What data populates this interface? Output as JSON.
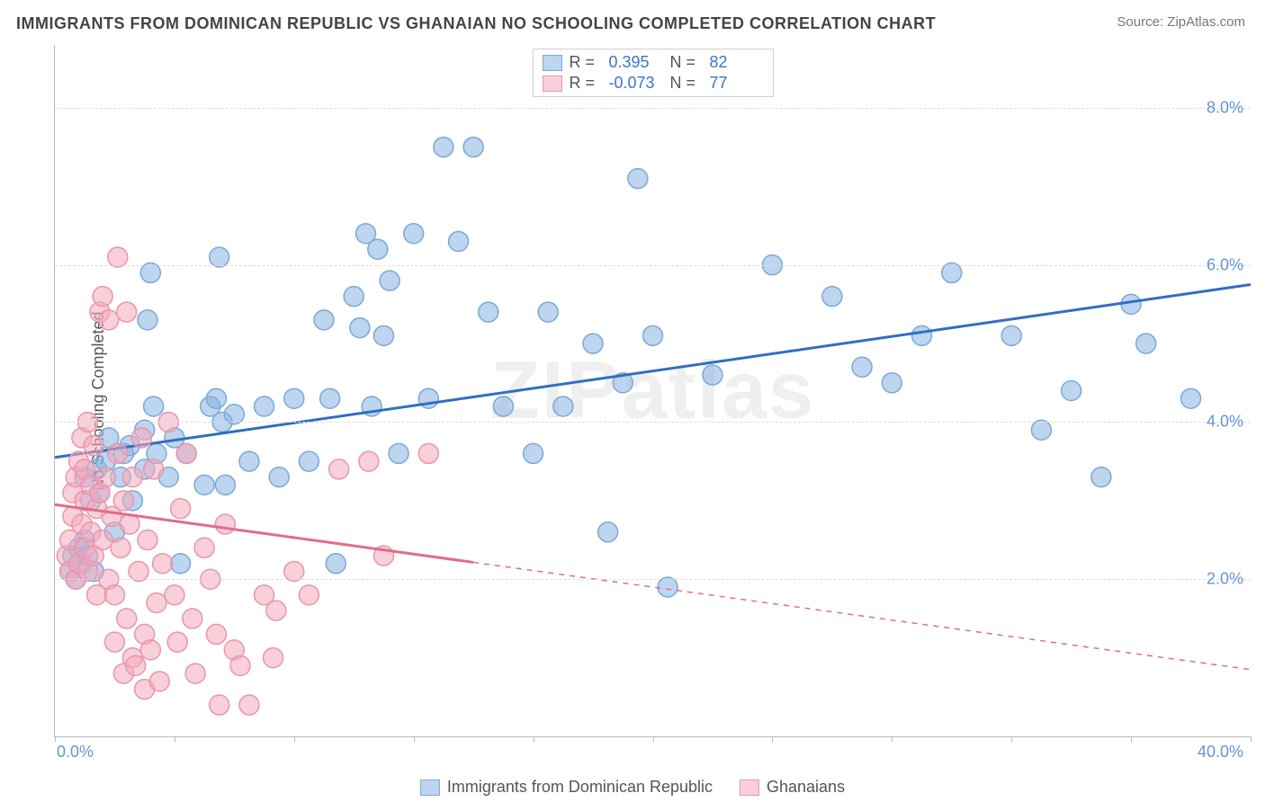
{
  "title": "IMMIGRANTS FROM DOMINICAN REPUBLIC VS GHANAIAN NO SCHOOLING COMPLETED CORRELATION CHART",
  "source_label": "Source:",
  "source_name": "ZipAtlas.com",
  "ylabel": "No Schooling Completed",
  "watermark": "ZIPatlas",
  "chart": {
    "type": "scatter",
    "background_color": "#ffffff",
    "grid_color": "#dddddd",
    "axis_color": "#bbbbbb",
    "label_color": "#6394d8",
    "title_color": "#444444",
    "title_fontsize": 18,
    "label_fontsize": 18,
    "marker_radius": 11,
    "marker_opacity": 0.55,
    "line_width": 3,
    "xlim": [
      0,
      40
    ],
    "ylim": [
      0,
      8.8
    ],
    "x_min_label": "0.0%",
    "x_max_label": "40.0%",
    "xtick_positions": [
      0,
      4,
      8,
      12,
      16,
      20,
      24,
      28,
      32,
      36,
      40
    ],
    "yticks": [
      2.0,
      4.0,
      6.0,
      8.0
    ],
    "ytick_labels": [
      "2.0%",
      "4.0%",
      "6.0%",
      "8.0%"
    ],
    "series": [
      {
        "name": "Immigrants from Dominican Republic",
        "color_fill": "rgba(137,179,226,0.55)",
        "color_stroke": "#7aa9d8",
        "line_color": "#2f6fc1",
        "r_label": "R =",
        "r_value": "0.395",
        "n_label": "N =",
        "n_value": "82",
        "trend": {
          "x1": 0,
          "y1": 3.55,
          "x2": 40,
          "y2": 5.75,
          "solid_to_x": 40
        },
        "points": [
          [
            0.5,
            2.1
          ],
          [
            0.6,
            2.3
          ],
          [
            0.7,
            2.0
          ],
          [
            0.8,
            2.4
          ],
          [
            0.9,
            2.2
          ],
          [
            1.0,
            2.5
          ],
          [
            1.1,
            2.3
          ],
          [
            1.3,
            2.1
          ],
          [
            1.0,
            3.3
          ],
          [
            1.2,
            3.0
          ],
          [
            1.4,
            3.4
          ],
          [
            1.5,
            3.1
          ],
          [
            1.7,
            3.5
          ],
          [
            1.8,
            3.8
          ],
          [
            2.0,
            2.6
          ],
          [
            2.2,
            3.3
          ],
          [
            2.3,
            3.6
          ],
          [
            2.5,
            3.7
          ],
          [
            2.6,
            3.0
          ],
          [
            3.0,
            3.9
          ],
          [
            3.0,
            3.4
          ],
          [
            3.3,
            4.2
          ],
          [
            3.1,
            5.3
          ],
          [
            3.2,
            5.9
          ],
          [
            3.4,
            3.6
          ],
          [
            3.8,
            3.3
          ],
          [
            4.0,
            3.8
          ],
          [
            4.2,
            2.2
          ],
          [
            4.4,
            3.6
          ],
          [
            5.0,
            3.2
          ],
          [
            5.2,
            4.2
          ],
          [
            5.4,
            4.3
          ],
          [
            5.6,
            4.0
          ],
          [
            5.7,
            3.2
          ],
          [
            5.5,
            6.1
          ],
          [
            6.0,
            4.1
          ],
          [
            6.5,
            3.5
          ],
          [
            7.0,
            4.2
          ],
          [
            7.5,
            3.3
          ],
          [
            8.0,
            4.3
          ],
          [
            8.5,
            3.5
          ],
          [
            9.0,
            5.3
          ],
          [
            9.2,
            4.3
          ],
          [
            9.4,
            2.2
          ],
          [
            10.0,
            5.6
          ],
          [
            10.2,
            5.2
          ],
          [
            10.4,
            6.4
          ],
          [
            10.6,
            4.2
          ],
          [
            10.8,
            6.2
          ],
          [
            11.0,
            5.1
          ],
          [
            11.2,
            5.8
          ],
          [
            11.5,
            3.6
          ],
          [
            12.0,
            6.4
          ],
          [
            12.5,
            4.3
          ],
          [
            13.0,
            7.5
          ],
          [
            13.5,
            6.3
          ],
          [
            14.0,
            7.5
          ],
          [
            14.5,
            5.4
          ],
          [
            15.0,
            4.2
          ],
          [
            16.0,
            3.6
          ],
          [
            16.5,
            5.4
          ],
          [
            17.0,
            4.2
          ],
          [
            18.0,
            5.0
          ],
          [
            18.5,
            2.6
          ],
          [
            19.0,
            4.5
          ],
          [
            19.5,
            7.1
          ],
          [
            20.0,
            5.1
          ],
          [
            20.5,
            1.9
          ],
          [
            22.0,
            4.6
          ],
          [
            24.0,
            6.0
          ],
          [
            26.0,
            5.6
          ],
          [
            27.0,
            4.7
          ],
          [
            28.0,
            4.5
          ],
          [
            29.0,
            5.1
          ],
          [
            30.0,
            5.9
          ],
          [
            32.0,
            5.1
          ],
          [
            33.0,
            3.9
          ],
          [
            34.0,
            4.4
          ],
          [
            35.0,
            3.3
          ],
          [
            36.0,
            5.5
          ],
          [
            36.5,
            5.0
          ],
          [
            38.0,
            4.3
          ]
        ]
      },
      {
        "name": "Ghanaians",
        "color_fill": "rgba(244,170,187,0.55)",
        "color_stroke": "#e995ab",
        "line_color": "#e26c8b",
        "r_label": "R =",
        "r_value": "-0.073",
        "n_label": "N =",
        "n_value": "77",
        "trend": {
          "x1": 0,
          "y1": 2.95,
          "x2": 40,
          "y2": 0.85,
          "solid_to_x": 14
        },
        "points": [
          [
            0.4,
            2.3
          ],
          [
            0.5,
            2.1
          ],
          [
            0.5,
            2.5
          ],
          [
            0.6,
            2.8
          ],
          [
            0.6,
            3.1
          ],
          [
            0.7,
            2.0
          ],
          [
            0.7,
            3.3
          ],
          [
            0.8,
            2.2
          ],
          [
            0.8,
            3.5
          ],
          [
            0.9,
            2.7
          ],
          [
            0.9,
            3.8
          ],
          [
            1.0,
            2.4
          ],
          [
            1.0,
            3.0
          ],
          [
            1.0,
            3.4
          ],
          [
            1.1,
            2.1
          ],
          [
            1.1,
            4.0
          ],
          [
            1.2,
            2.6
          ],
          [
            1.2,
            3.2
          ],
          [
            1.3,
            2.3
          ],
          [
            1.3,
            3.7
          ],
          [
            1.4,
            2.9
          ],
          [
            1.4,
            1.8
          ],
          [
            1.5,
            3.1
          ],
          [
            1.5,
            5.4
          ],
          [
            1.6,
            2.5
          ],
          [
            1.6,
            5.6
          ],
          [
            1.7,
            3.3
          ],
          [
            1.8,
            2.0
          ],
          [
            1.8,
            5.3
          ],
          [
            1.9,
            2.8
          ],
          [
            2.0,
            1.2
          ],
          [
            2.0,
            1.8
          ],
          [
            2.1,
            3.6
          ],
          [
            2.1,
            6.1
          ],
          [
            2.2,
            2.4
          ],
          [
            2.3,
            3.0
          ],
          [
            2.3,
            0.8
          ],
          [
            2.4,
            1.5
          ],
          [
            2.4,
            5.4
          ],
          [
            2.5,
            2.7
          ],
          [
            2.6,
            1.0
          ],
          [
            2.6,
            3.3
          ],
          [
            2.7,
            0.9
          ],
          [
            2.8,
            2.1
          ],
          [
            2.9,
            3.8
          ],
          [
            3.0,
            1.3
          ],
          [
            3.0,
            0.6
          ],
          [
            3.1,
            2.5
          ],
          [
            3.2,
            1.1
          ],
          [
            3.3,
            3.4
          ],
          [
            3.4,
            1.7
          ],
          [
            3.5,
            0.7
          ],
          [
            3.6,
            2.2
          ],
          [
            3.8,
            4.0
          ],
          [
            4.0,
            1.8
          ],
          [
            4.1,
            1.2
          ],
          [
            4.2,
            2.9
          ],
          [
            4.4,
            3.6
          ],
          [
            4.6,
            1.5
          ],
          [
            4.7,
            0.8
          ],
          [
            5.0,
            2.4
          ],
          [
            5.2,
            2.0
          ],
          [
            5.4,
            1.3
          ],
          [
            5.5,
            0.4
          ],
          [
            5.7,
            2.7
          ],
          [
            6.0,
            1.1
          ],
          [
            6.2,
            0.9
          ],
          [
            6.5,
            0.4
          ],
          [
            7.0,
            1.8
          ],
          [
            7.3,
            1.0
          ],
          [
            7.4,
            1.6
          ],
          [
            8.0,
            2.1
          ],
          [
            8.5,
            1.8
          ],
          [
            9.5,
            3.4
          ],
          [
            10.5,
            3.5
          ],
          [
            11.0,
            2.3
          ],
          [
            12.5,
            3.6
          ]
        ]
      }
    ]
  },
  "legend_bottom": [
    {
      "label": "Immigrants from Dominican Republic"
    },
    {
      "label": "Ghanaians"
    }
  ]
}
